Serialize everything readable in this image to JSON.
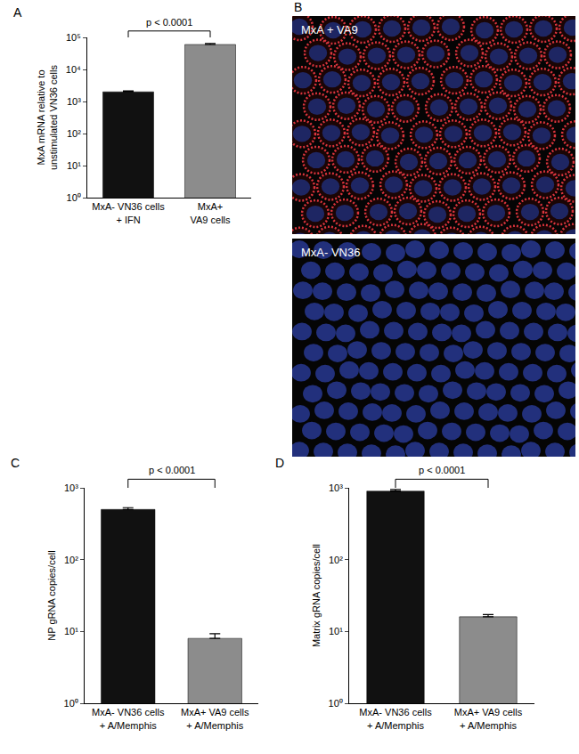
{
  "chart_data": [
    {
      "type": "bar",
      "title": "A",
      "categories": [
        "MxA- VN36 cells\n+ IFN",
        "MxA+\nVA9 cells"
      ],
      "values": [
        2000,
        60000
      ],
      "errors": [
        150,
        5000
      ],
      "colors": [
        "#111111",
        "#8c8c8c"
      ],
      "y_label": "MxA mRNA relative to\nunstimulated VN36 cells",
      "log": "y",
      "ylim": [
        1,
        100000
      ],
      "yticks": [
        {
          "value": 1,
          "label": "10⁰"
        },
        {
          "value": 10,
          "label": "10¹"
        },
        {
          "value": 100,
          "label": "10²"
        },
        {
          "value": 1000,
          "label": "10³"
        },
        {
          "value": 10000,
          "label": "10⁴"
        },
        {
          "value": 100000,
          "label": "10⁵"
        }
      ],
      "annotations": [
        {
          "text": "p < 0.0001"
        }
      ]
    },
    {
      "type": "bar",
      "title": "C",
      "categories": [
        "MxA- VN36 cells\n+ A/Memphis",
        "MxA+ VA9 cells\n+ A/Memphis"
      ],
      "values": [
        500,
        8
      ],
      "errors": [
        30,
        1.3
      ],
      "colors": [
        "#111111",
        "#8c8c8c"
      ],
      "y_label": "NP gRNA copies/cell",
      "log": "y",
      "ylim": [
        1,
        1000
      ],
      "yticks": [
        {
          "value": 1,
          "label": "10⁰"
        },
        {
          "value": 10,
          "label": "10¹"
        },
        {
          "value": 100,
          "label": "10²"
        },
        {
          "value": 1000,
          "label": "10³"
        }
      ],
      "annotations": [
        {
          "text": "p < 0.0001"
        }
      ]
    },
    {
      "type": "bar",
      "title": "D",
      "categories": [
        "MxA- VN36 cells\n+ A/Memphis",
        "MxA+ VA9 cells\n+ A/Memphis"
      ],
      "values": [
        900,
        16
      ],
      "errors": [
        50,
        1.2
      ],
      "colors": [
        "#111111",
        "#8c8c8c"
      ],
      "y_label": "Matrix gRNA copies/cell",
      "log": "y",
      "ylim": [
        1,
        1000
      ],
      "yticks": [
        {
          "value": 1,
          "label": "10⁰"
        },
        {
          "value": 10,
          "label": "10¹"
        },
        {
          "value": 100,
          "label": "10²"
        },
        {
          "value": 1000,
          "label": "10³"
        }
      ],
      "annotations": [
        {
          "text": "p < 0.0001"
        }
      ]
    }
  ],
  "images": {
    "title": "B",
    "panels": [
      {
        "label": "MxA + VA9"
      },
      {
        "label": "MxA- VN36"
      }
    ]
  }
}
